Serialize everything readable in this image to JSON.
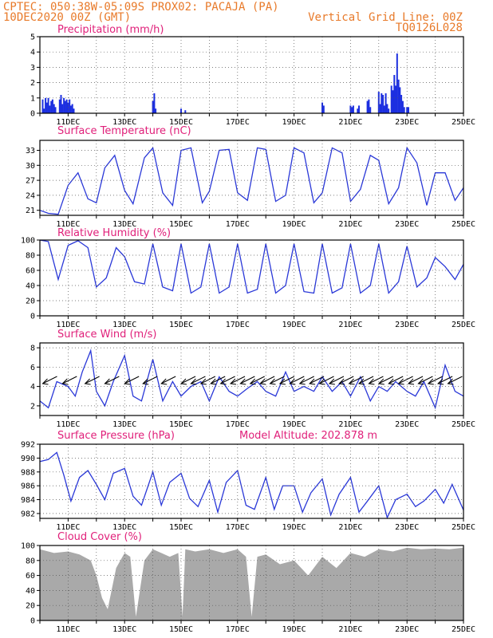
{
  "header": {
    "line1_left": "CPTEC:   050:38W-05:09S   PROX02: PACAJA (PA)",
    "line2_left": "10DEC2020 00Z (GMT)",
    "line2_right": "Vertical Grid Line: 00Z",
    "line3_right": "TQ0126L028"
  },
  "x_axis": {
    "range_days": [
      0,
      15
    ],
    "tick_labels": [
      "11DEC",
      "13DEC",
      "15DEC",
      "17DEC",
      "19DEC",
      "21DEC",
      "23DEC",
      "25DEC"
    ]
  },
  "colors": {
    "line": "#2a38d8",
    "bars": "#1c2fe0",
    "cloud": "#a9a9a9",
    "header": "#e87a2a",
    "title": "#e0207a"
  },
  "chart_data": [
    {
      "type": "bar",
      "id": "precip",
      "title": "Precipitation (mm/h)",
      "ylim": [
        0,
        5
      ],
      "yticks": [
        0,
        1,
        2,
        3,
        4,
        5
      ],
      "x": [
        0.1,
        0.15,
        0.2,
        0.25,
        0.3,
        0.35,
        0.4,
        0.45,
        0.5,
        0.55,
        0.7,
        0.75,
        0.8,
        0.85,
        0.9,
        0.95,
        1.0,
        1.05,
        1.1,
        1.15,
        1.2,
        4.0,
        4.05,
        4.1,
        5.0,
        5.15,
        10.0,
        10.05,
        11.0,
        11.05,
        11.1,
        11.25,
        11.3,
        11.6,
        11.65,
        11.7,
        12.0,
        12.05,
        12.1,
        12.15,
        12.2,
        12.25,
        12.3,
        12.35,
        12.45,
        12.5,
        12.55,
        12.6,
        12.65,
        12.7,
        12.75,
        12.8,
        12.85,
        12.9,
        13.0,
        13.05
      ],
      "values": [
        0.9,
        0.3,
        1.0,
        0.7,
        1.0,
        0.5,
        0.8,
        0.9,
        0.6,
        0.4,
        0.9,
        1.2,
        0.6,
        1.0,
        0.8,
        0.9,
        0.7,
        0.9,
        0.5,
        0.6,
        0.3,
        0.8,
        1.3,
        0.3,
        0.3,
        0.2,
        0.7,
        0.5,
        0.5,
        0.4,
        0.5,
        0.3,
        0.5,
        0.8,
        0.9,
        0.4,
        1.4,
        0.6,
        1.3,
        1.2,
        0.5,
        1.3,
        0.6,
        0.3,
        1.8,
        1.5,
        2.5,
        1.8,
        3.9,
        2.2,
        1.7,
        1.2,
        0.8,
        0.4,
        0.4,
        0.4
      ]
    },
    {
      "type": "line",
      "id": "temp",
      "title": "Surface Temperature (nC)",
      "ylim": [
        20,
        35
      ],
      "yticks": [
        21,
        24,
        27,
        30,
        33
      ],
      "x": [
        0,
        0.3,
        0.65,
        1.0,
        1.35,
        1.7,
        2.0,
        2.3,
        2.65,
        3.0,
        3.3,
        3.7,
        4.0,
        4.35,
        4.7,
        5.0,
        5.35,
        5.75,
        6.0,
        6.35,
        6.7,
        7.0,
        7.35,
        7.7,
        8.0,
        8.35,
        8.7,
        9.0,
        9.35,
        9.7,
        10.0,
        10.35,
        10.7,
        11.0,
        11.35,
        11.7,
        12.0,
        12.35,
        12.7,
        13.0,
        13.35,
        13.7,
        14.0,
        14.35,
        14.7,
        15.0
      ],
      "values": [
        21.0,
        20.4,
        20.2,
        26.0,
        28.5,
        23.3,
        22.5,
        29.5,
        32.0,
        25.0,
        22.3,
        31.5,
        33.5,
        24.5,
        22.0,
        33.0,
        33.5,
        22.5,
        24.8,
        33.0,
        33.2,
        24.5,
        23.0,
        33.5,
        33.2,
        22.8,
        24.0,
        33.5,
        32.5,
        22.5,
        24.5,
        33.5,
        32.5,
        22.8,
        25.2,
        32.0,
        31.0,
        22.3,
        25.5,
        33.5,
        30.5,
        22.0,
        28.5,
        28.5,
        23.0,
        25.5
      ]
    },
    {
      "type": "line",
      "id": "rh",
      "title": "Relative Humidity (%)",
      "ylim": [
        0,
        100
      ],
      "yticks": [
        0,
        20,
        40,
        60,
        80,
        100
      ],
      "x": [
        0,
        0.3,
        0.65,
        1.0,
        1.35,
        1.7,
        2.0,
        2.35,
        2.7,
        3.0,
        3.35,
        3.7,
        4.0,
        4.35,
        4.7,
        5.0,
        5.35,
        5.7,
        6.0,
        6.35,
        6.7,
        7.0,
        7.35,
        7.7,
        8.0,
        8.35,
        8.7,
        9.0,
        9.35,
        9.7,
        10.0,
        10.35,
        10.7,
        11.0,
        11.35,
        11.7,
        12.0,
        12.35,
        12.7,
        13.0,
        13.35,
        13.7,
        14.0,
        14.35,
        14.7,
        15.0
      ],
      "values": [
        100,
        98,
        48,
        93,
        99,
        90,
        38,
        50,
        90,
        78,
        45,
        42,
        95,
        38,
        33,
        95,
        30,
        38,
        95,
        30,
        38,
        95,
        30,
        35,
        95,
        30,
        40,
        95,
        32,
        30,
        95,
        30,
        37,
        95,
        30,
        40,
        95,
        30,
        45,
        92,
        38,
        50,
        77,
        65,
        48,
        68
      ]
    },
    {
      "type": "line",
      "id": "wind",
      "title": "Surface Wind (m/s)",
      "ylim": [
        1,
        8.5
      ],
      "yticks": [
        2,
        4,
        6,
        8
      ],
      "x": [
        0,
        0.3,
        0.6,
        1.0,
        1.25,
        1.5,
        1.8,
        2.0,
        2.3,
        2.6,
        3.0,
        3.3,
        3.6,
        4.0,
        4.35,
        4.7,
        5.0,
        5.35,
        5.7,
        6.0,
        6.35,
        6.7,
        7.0,
        7.35,
        7.7,
        8.0,
        8.35,
        8.7,
        9.0,
        9.35,
        9.7,
        10.0,
        10.35,
        10.7,
        11.0,
        11.35,
        11.7,
        12.0,
        12.3,
        12.6,
        13.0,
        13.3,
        13.6,
        14.0,
        14.35,
        14.7,
        15.0
      ],
      "values": [
        2.5,
        1.8,
        4.5,
        4.0,
        3.0,
        5.5,
        7.7,
        3.5,
        2.0,
        4.5,
        7.2,
        3.0,
        2.5,
        6.8,
        2.5,
        4.5,
        3.0,
        4.0,
        4.5,
        2.5,
        5.0,
        3.5,
        3.0,
        3.8,
        4.5,
        3.5,
        3.0,
        5.5,
        3.5,
        4.0,
        3.5,
        5.0,
        3.5,
        4.5,
        3.0,
        5.0,
        2.5,
        4.0,
        3.5,
        4.5,
        3.5,
        3.0,
        4.5,
        1.8,
        6.2,
        3.5,
        3.0
      ],
      "arrow_times": [
        0.1,
        0.8,
        1.6,
        2.3,
        3.0,
        3.65,
        4.3,
        5.0,
        5.35,
        5.7,
        6.05,
        6.4,
        6.75,
        7.1,
        7.45,
        7.8,
        8.15,
        8.5,
        8.85,
        9.2,
        9.55,
        9.9,
        10.25,
        10.6,
        10.95,
        11.3,
        11.65,
        12.0,
        12.35,
        12.7,
        13.05,
        13.4,
        13.75,
        14.1,
        14.45
      ]
    },
    {
      "type": "line",
      "id": "press",
      "title": "Surface Pressure (hPa)",
      "annotation": "Model Altitude: 202.878 m",
      "ylim": [
        981.3,
        992
      ],
      "yticks": [
        982,
        984,
        986,
        988,
        990,
        992
      ],
      "x": [
        0,
        0.3,
        0.6,
        0.85,
        1.1,
        1.4,
        1.7,
        2.0,
        2.3,
        2.6,
        3.0,
        3.3,
        3.6,
        4.0,
        4.3,
        4.6,
        5.0,
        5.3,
        5.6,
        6.0,
        6.3,
        6.6,
        7.0,
        7.3,
        7.6,
        8.0,
        8.3,
        8.6,
        9.0,
        9.3,
        9.6,
        10.0,
        10.3,
        10.6,
        11.0,
        11.3,
        11.6,
        12.0,
        12.3,
        12.6,
        13.0,
        13.3,
        13.6,
        14.0,
        14.3,
        14.6,
        15.0
      ],
      "values": [
        989.5,
        989.8,
        990.8,
        987.5,
        983.8,
        987.2,
        988.2,
        986.2,
        984.0,
        987.8,
        988.5,
        984.5,
        983.2,
        988.0,
        983.2,
        986.5,
        987.8,
        984.2,
        983.0,
        986.8,
        982.2,
        986.5,
        988.2,
        983.2,
        982.6,
        987.2,
        982.6,
        986.0,
        986.0,
        982.2,
        985.0,
        987.0,
        981.8,
        984.8,
        987.2,
        982.2,
        983.8,
        986.0,
        981.4,
        984.0,
        984.8,
        983.0,
        983.8,
        985.5,
        983.5,
        986.2,
        982.5
      ]
    },
    {
      "type": "area",
      "id": "cloud",
      "title": "Cloud Cover (%)",
      "ylim": [
        0,
        100
      ],
      "yticks": [
        0,
        20,
        40,
        60,
        80,
        100
      ],
      "x": [
        0,
        0.5,
        1.0,
        1.4,
        1.8,
        2.0,
        2.2,
        2.4,
        2.7,
        3.0,
        3.2,
        3.4,
        3.7,
        4.0,
        4.3,
        4.6,
        4.9,
        5.05,
        5.15,
        5.5,
        6.0,
        6.5,
        7.0,
        7.3,
        7.5,
        7.7,
        8.0,
        8.5,
        9.0,
        9.5,
        10.0,
        10.5,
        11.0,
        11.5,
        12.0,
        12.5,
        13.0,
        13.5,
        14.0,
        14.5,
        15.0
      ],
      "values": [
        95,
        90,
        92,
        88,
        80,
        60,
        30,
        15,
        70,
        90,
        85,
        5,
        80,
        95,
        90,
        85,
        90,
        5,
        95,
        92,
        95,
        90,
        95,
        85,
        5,
        85,
        88,
        75,
        80,
        60,
        85,
        70,
        90,
        85,
        95,
        92,
        97,
        95,
        96,
        95,
        97
      ]
    }
  ]
}
